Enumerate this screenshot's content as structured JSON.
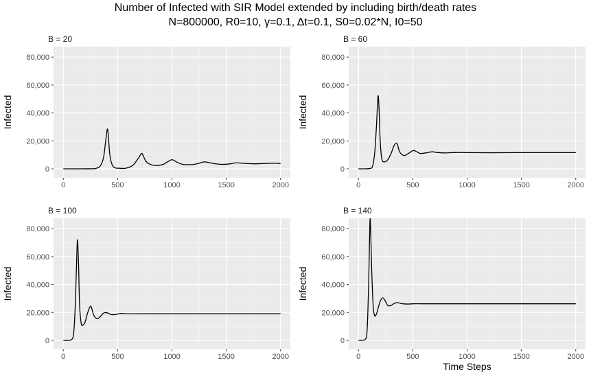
{
  "title": "Number of Infected with SIR Model extended by including birth/death rates",
  "subtitle": "N=800000, R0=10, γ=0.1, Δt=0.1, S0=0.02*N, I0=50",
  "chart_data": [
    {
      "type": "line",
      "panel_label": "B = 20",
      "ylabel": "Infected",
      "xlabel": "",
      "xlim": [
        0,
        2000
      ],
      "ylim": [
        0,
        85000
      ],
      "x_ticks": [
        0,
        500,
        1000,
        1500,
        2000
      ],
      "x_tick_labels": [
        "0",
        "500",
        "1000",
        "1500",
        "2000"
      ],
      "y_ticks": [
        0,
        20000,
        40000,
        60000,
        80000
      ],
      "y_tick_labels": [
        "0",
        "20,000",
        "40,000",
        "60,000",
        "80,000"
      ],
      "series": [
        {
          "x": [
            0,
            250,
            300,
            340,
            370,
            390,
            405,
            415,
            430,
            460,
            520,
            580,
            640,
            690,
            720,
            735,
            760,
            800,
            860,
            920,
            970,
            1000,
            1020,
            1045,
            1100,
            1180,
            1240,
            1290,
            1320,
            1380,
            1460,
            1540,
            1590,
            1650,
            1750,
            1850,
            1950,
            2000
          ],
          "y": [
            0,
            30,
            300,
            2000,
            8000,
            20000,
            28500,
            23000,
            9000,
            1500,
            400,
            500,
            2500,
            7500,
            11000,
            9500,
            5500,
            3200,
            2400,
            3200,
            5500,
            6500,
            6000,
            4800,
            3200,
            3000,
            3800,
            4900,
            4800,
            3800,
            3200,
            3600,
            4300,
            4000,
            3600,
            3800,
            4000,
            3800
          ]
        }
      ]
    },
    {
      "type": "line",
      "panel_label": "B = 60",
      "ylabel": "Infected",
      "xlabel": "",
      "xlim": [
        0,
        2000
      ],
      "ylim": [
        0,
        85000
      ],
      "x_ticks": [
        0,
        500,
        1000,
        1500,
        2000
      ],
      "x_tick_labels": [
        "0",
        "500",
        "1000",
        "1500",
        "2000"
      ],
      "y_ticks": [
        0,
        20000,
        40000,
        60000,
        80000
      ],
      "y_tick_labels": [
        "0",
        "20,000",
        "40,000",
        "60,000",
        "80,000"
      ],
      "series": [
        {
          "x": [
            0,
            100,
            130,
            150,
            165,
            180,
            190,
            200,
            215,
            240,
            270,
            300,
            330,
            355,
            380,
            420,
            460,
            500,
            530,
            570,
            620,
            680,
            720,
            800,
            900,
            1000,
            1200,
            1500,
            2000
          ],
          "y": [
            0,
            200,
            2000,
            12000,
            30000,
            52000,
            42000,
            20000,
            7000,
            5000,
            6500,
            11000,
            17000,
            18000,
            12000,
            9500,
            11000,
            13000,
            12500,
            11000,
            11400,
            12200,
            11700,
            11400,
            11700,
            11600,
            11500,
            11600,
            11600
          ]
        }
      ]
    },
    {
      "type": "line",
      "panel_label": "B = 100",
      "ylabel": "Infected",
      "xlabel": "",
      "xlim": [
        0,
        2000
      ],
      "ylim": [
        0,
        85000
      ],
      "x_ticks": [
        0,
        500,
        1000,
        1500,
        2000
      ],
      "x_tick_labels": [
        "0",
        "500",
        "1000",
        "1500",
        "2000"
      ],
      "y_ticks": [
        0,
        20000,
        40000,
        60000,
        80000
      ],
      "y_tick_labels": [
        "0",
        "20,000",
        "40,000",
        "60,000",
        "80,000"
      ],
      "series": [
        {
          "x": [
            0,
            70,
            95,
            110,
            120,
            130,
            140,
            150,
            165,
            180,
            200,
            225,
            250,
            265,
            280,
            310,
            340,
            370,
            400,
            440,
            480,
            530,
            600,
            700,
            1000,
            1500,
            2000
          ],
          "y": [
            0,
            300,
            5000,
            25000,
            50000,
            72000,
            55000,
            25000,
            12000,
            11000,
            13000,
            20000,
            24500,
            22000,
            18000,
            15500,
            17000,
            19500,
            19800,
            18500,
            18500,
            19300,
            19000,
            19000,
            19000,
            19000,
            19000
          ]
        }
      ]
    },
    {
      "type": "line",
      "panel_label": "B = 140",
      "ylabel": "Infected",
      "xlabel": "Time Steps",
      "xlim": [
        0,
        2000
      ],
      "ylim": [
        0,
        85000
      ],
      "x_ticks": [
        0,
        500,
        1000,
        1500,
        2000
      ],
      "x_tick_labels": [
        "0",
        "500",
        "1000",
        "1500",
        "2000"
      ],
      "y_ticks": [
        0,
        20000,
        40000,
        60000,
        80000
      ],
      "y_tick_labels": [
        "0",
        "20,000",
        "40,000",
        "60,000",
        "80,000"
      ],
      "series": [
        {
          "x": [
            0,
            60,
            80,
            95,
            105,
            112,
            122,
            135,
            150,
            170,
            195,
            220,
            245,
            270,
            300,
            330,
            360,
            400,
            450,
            500,
            600,
            800,
            1000,
            1500,
            2000
          ],
          "y": [
            0,
            500,
            8000,
            45000,
            84500,
            80000,
            50000,
            25000,
            17500,
            20000,
            27000,
            30500,
            28500,
            25000,
            25000,
            26500,
            27000,
            26300,
            26000,
            26200,
            26200,
            26200,
            26200,
            26200,
            26200
          ]
        }
      ]
    }
  ]
}
